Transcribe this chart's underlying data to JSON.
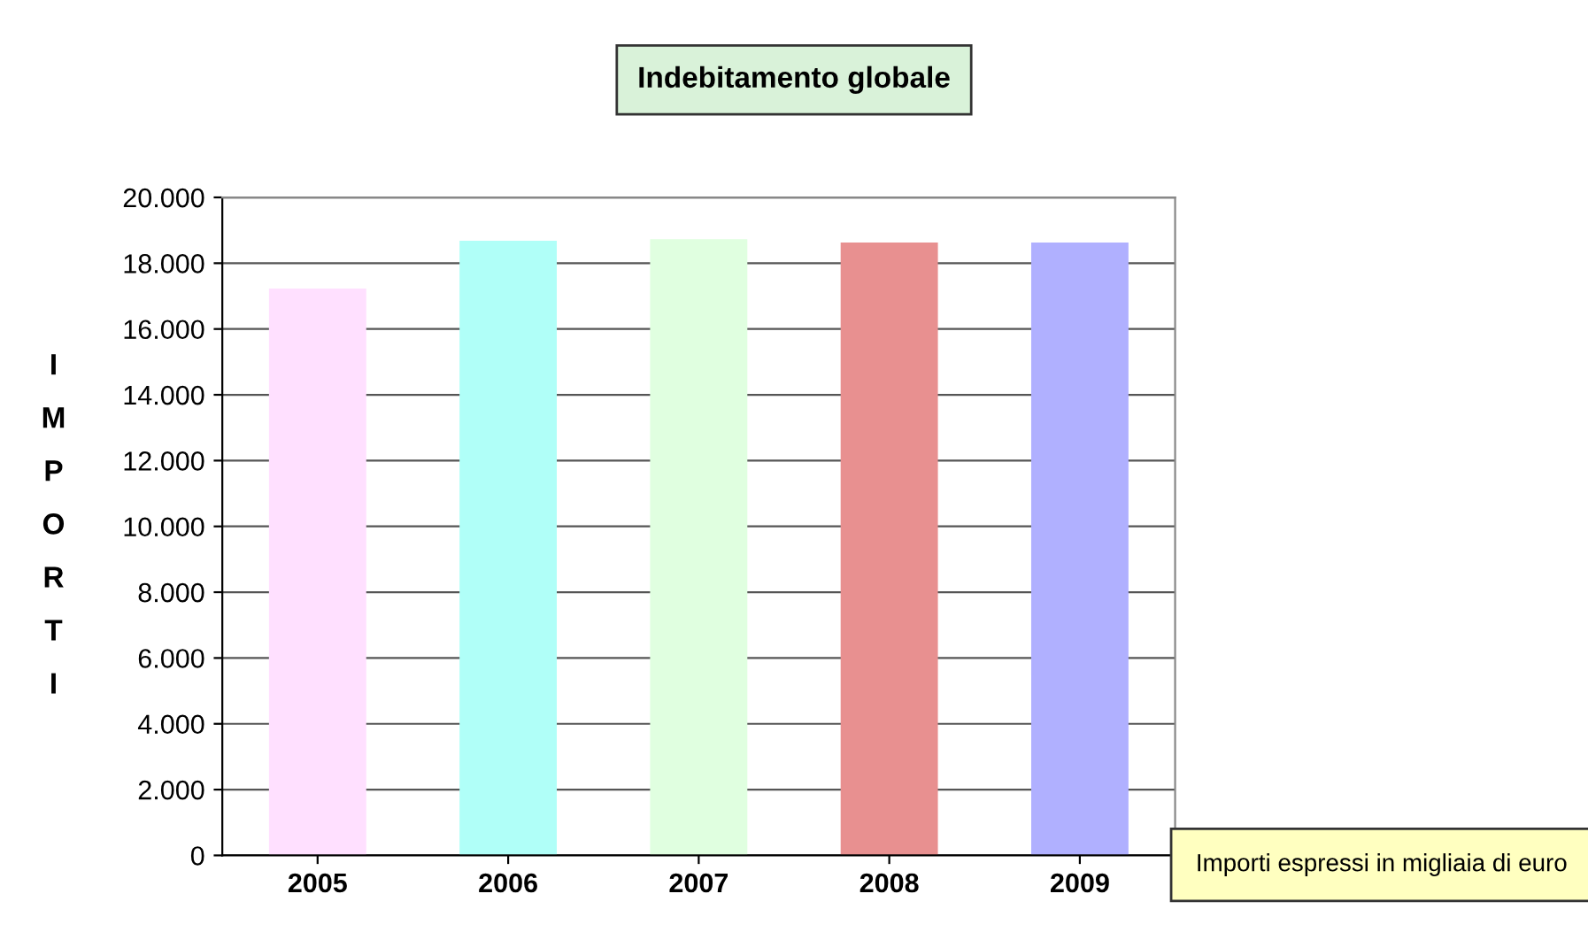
{
  "chart_data": {
    "type": "bar",
    "title": "Indebitamento globale",
    "ylabel": "IMPORTI",
    "categories": [
      "2005",
      "2006",
      "2007",
      "2008",
      "2009"
    ],
    "values": [
      17200,
      18650,
      18700,
      18600,
      18600
    ],
    "colors": [
      "#ffe0ff",
      "#b0fff8",
      "#e0ffe0",
      "#e89090",
      "#b0b0ff"
    ],
    "ylim": [
      0,
      20000
    ],
    "yticks": [
      0,
      {
        "value": 2000,
        "label": "2.000"
      },
      {
        "value": 4000,
        "label": "4.000"
      },
      {
        "value": 6000,
        "label": "6.000"
      },
      {
        "value": 8000,
        "label": "8.000"
      },
      {
        "value": 10000,
        "label": "10.000"
      },
      {
        "value": 12000,
        "label": "12.000"
      },
      {
        "value": 14000,
        "label": "14.000"
      },
      {
        "value": 16000,
        "label": "16.000"
      },
      {
        "value": 18000,
        "label": "18.000"
      },
      {
        "value": 20000,
        "label": "20.000"
      }
    ],
    "grid": "y",
    "legend": false,
    "annotations": [
      "Importi espressi in migliaia di euro"
    ]
  }
}
